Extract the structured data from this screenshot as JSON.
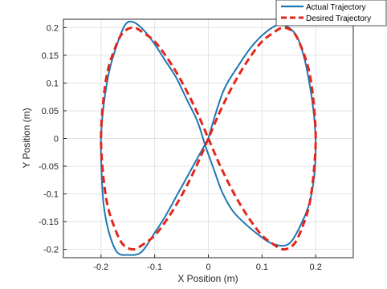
{
  "chart_data": {
    "type": "line",
    "title": "",
    "xlabel": "X Position (m)",
    "ylabel": "Y Position (m)",
    "xlim": [
      -0.27,
      0.27
    ],
    "ylim": [
      -0.215,
      0.215
    ],
    "grid": true,
    "legend_position": "top-right",
    "x_ticks": [
      -0.2,
      -0.1,
      0,
      0.1,
      0.2
    ],
    "x_tick_labels": [
      "-0.2",
      "-0.1",
      "0",
      "0.1",
      "0.2"
    ],
    "y_ticks": [
      0.2,
      0.15,
      0.1,
      0.05,
      0,
      -0.05,
      -0.1,
      -0.15,
      -0.2
    ],
    "y_tick_labels": [
      "0.2",
      "0.15",
      "0.1",
      "0.05",
      "0",
      "-0.05",
      "-0.1",
      "-0.15",
      "-0.2"
    ],
    "series": [
      {
        "name": "Actual Trajectory",
        "color": "#1f77b4",
        "style": "solid",
        "x": [
          0,
          0.012,
          0.03,
          0.055,
          0.08,
          0.105,
          0.13,
          0.15,
          0.167,
          0.18,
          0.19,
          0.197,
          0.2,
          0.198,
          0.19,
          0.175,
          0.15,
          0.12,
          0.095,
          0.07,
          0.045,
          0.025,
          0.01,
          -0.005,
          -0.02,
          -0.04,
          -0.06,
          -0.08,
          -0.1,
          -0.12,
          -0.14,
          -0.155,
          -0.17,
          -0.185,
          -0.195,
          -0.2,
          -0.199,
          -0.195,
          -0.185,
          -0.17,
          -0.15,
          -0.125,
          -0.1,
          -0.08,
          -0.06,
          -0.04,
          -0.02,
          0
        ],
        "y": [
          0,
          0.04,
          0.09,
          0.13,
          0.165,
          0.19,
          0.205,
          0.2,
          0.18,
          0.14,
          0.09,
          0.04,
          -0.01,
          -0.06,
          -0.11,
          -0.15,
          -0.19,
          -0.19,
          -0.175,
          -0.155,
          -0.13,
          -0.095,
          -0.055,
          -0.015,
          0.03,
          0.07,
          0.11,
          0.14,
          0.17,
          0.195,
          0.21,
          0.205,
          0.17,
          0.12,
          0.06,
          0.0,
          -0.06,
          -0.12,
          -0.17,
          -0.205,
          -0.21,
          -0.205,
          -0.17,
          -0.14,
          -0.105,
          -0.07,
          -0.035,
          0
        ]
      },
      {
        "name": "Desired Trajectory",
        "color": "#e3261b",
        "style": "dashed",
        "x": [
          0,
          0.02,
          0.04,
          0.06,
          0.08,
          0.1,
          0.12,
          0.14,
          0.16,
          0.175,
          0.188,
          0.196,
          0.2,
          0.196,
          0.188,
          0.175,
          0.16,
          0.14,
          0.12,
          0.1,
          0.08,
          0.06,
          0.04,
          0.02,
          0,
          -0.02,
          -0.04,
          -0.06,
          -0.08,
          -0.1,
          -0.12,
          -0.14,
          -0.16,
          -0.175,
          -0.188,
          -0.196,
          -0.2,
          -0.196,
          -0.188,
          -0.175,
          -0.16,
          -0.14,
          -0.12,
          -0.1,
          -0.08,
          -0.06,
          -0.04,
          -0.02,
          0
        ],
        "y": [
          0,
          -0.045,
          -0.085,
          -0.12,
          -0.15,
          -0.175,
          -0.19,
          -0.2,
          -0.19,
          -0.16,
          -0.12,
          -0.065,
          0,
          0.065,
          0.12,
          0.16,
          0.19,
          0.2,
          0.19,
          0.175,
          0.15,
          0.12,
          0.085,
          0.045,
          0,
          -0.045,
          -0.085,
          -0.12,
          -0.15,
          -0.175,
          -0.19,
          -0.2,
          -0.19,
          -0.16,
          -0.12,
          -0.065,
          0,
          0.065,
          0.12,
          0.16,
          0.19,
          0.2,
          0.19,
          0.175,
          0.15,
          0.12,
          0.085,
          0.045,
          0
        ]
      }
    ]
  }
}
